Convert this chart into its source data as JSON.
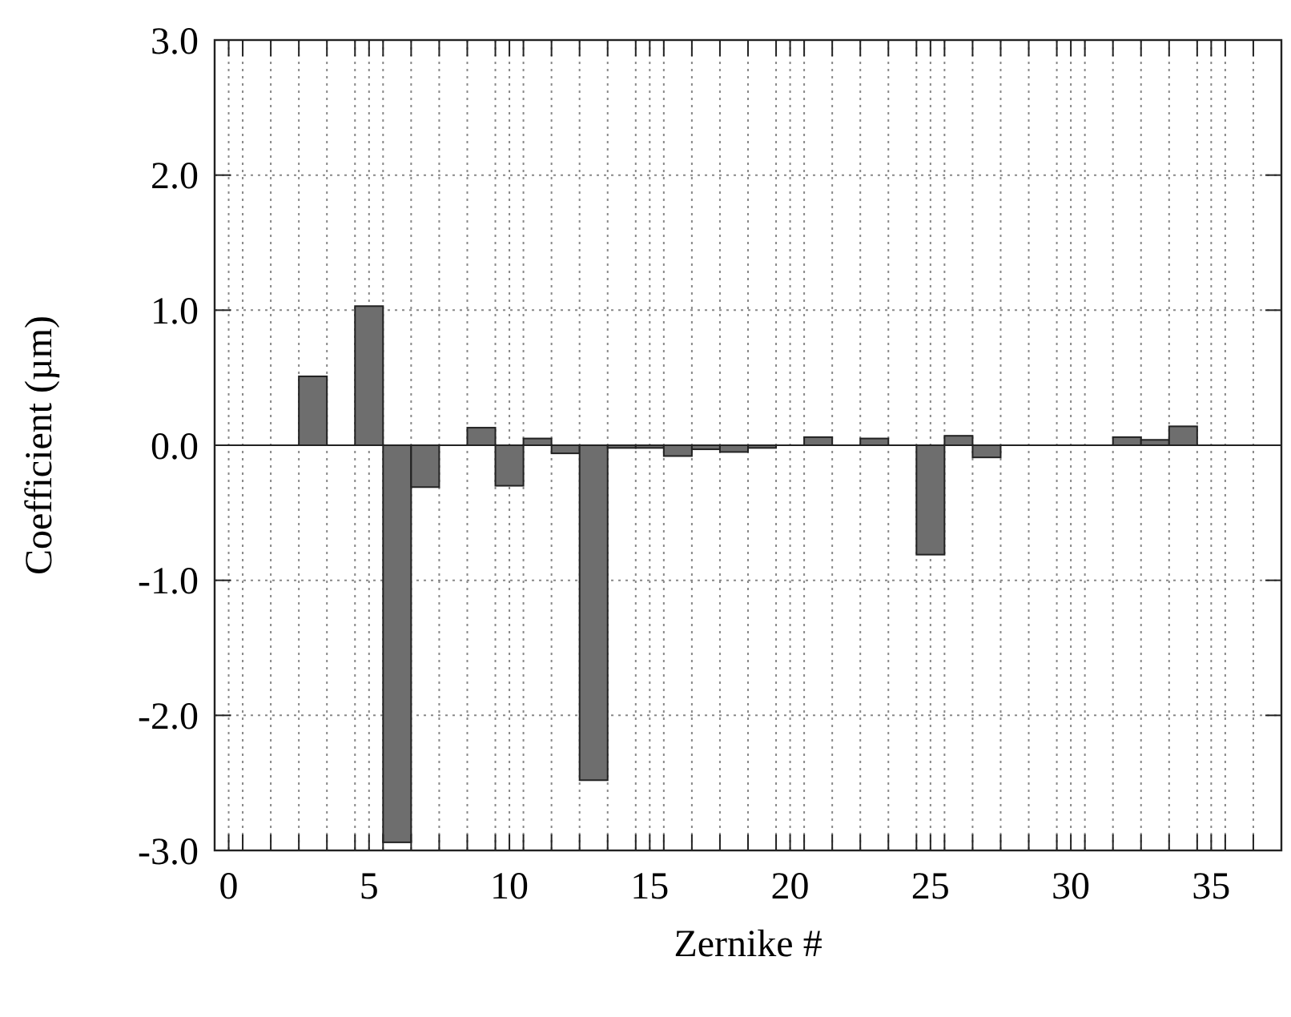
{
  "chart_data": {
    "type": "bar",
    "xlabel": "Zernike #",
    "ylabel": "Coefficient (µm)",
    "x": [
      3,
      5,
      6,
      7,
      9,
      10,
      11,
      12,
      13,
      14,
      15,
      16,
      17,
      18,
      19,
      21,
      23,
      25,
      26,
      27,
      32,
      33,
      34
    ],
    "values": [
      0.51,
      1.03,
      -2.94,
      -0.31,
      0.13,
      -0.3,
      0.05,
      -0.06,
      -2.48,
      -0.02,
      -0.02,
      -0.08,
      -0.03,
      -0.05,
      -0.02,
      0.06,
      0.05,
      -0.81,
      0.07,
      -0.09,
      0.06,
      0.04,
      0.14
    ],
    "color": "#6e6e6e",
    "xlim": [
      -0.5,
      37.5
    ],
    "xticks": [
      0,
      5,
      10,
      15,
      20,
      25,
      30,
      35,
      {
        "value": -0.5,
        "label": null
      },
      {
        "value": 0.5,
        "label": null
      },
      {
        "value": 1.5,
        "label": null
      },
      {
        "value": 2.5,
        "label": null
      },
      {
        "value": 3.5,
        "label": null
      },
      {
        "value": 4.5,
        "label": null
      },
      {
        "value": 5.5,
        "label": null
      },
      {
        "value": 6.5,
        "label": null
      },
      {
        "value": 7.5,
        "label": null
      },
      {
        "value": 8.5,
        "label": null
      },
      {
        "value": 9.5,
        "label": null
      },
      {
        "value": 10.5,
        "label": null
      },
      {
        "value": 11.5,
        "label": null
      },
      {
        "value": 12.5,
        "label": null
      },
      {
        "value": 13.5,
        "label": null
      },
      {
        "value": 14.5,
        "label": null
      },
      {
        "value": 15.5,
        "label": null
      },
      {
        "value": 16.5,
        "label": null
      },
      {
        "value": 17.5,
        "label": null
      },
      {
        "value": 18.5,
        "label": null
      },
      {
        "value": 19.5,
        "label": null
      },
      {
        "value": 20.5,
        "label": null
      },
      {
        "value": 21.5,
        "label": null
      },
      {
        "value": 22.5,
        "label": null
      },
      {
        "value": 23.5,
        "label": null
      },
      {
        "value": 24.5,
        "label": null
      },
      {
        "value": 25.5,
        "label": null
      },
      {
        "value": 26.5,
        "label": null
      },
      {
        "value": 27.5,
        "label": null
      },
      {
        "value": 28.5,
        "label": null
      },
      {
        "value": 29.5,
        "label": null
      },
      {
        "value": 30.5,
        "label": null
      },
      {
        "value": 31.5,
        "label": null
      },
      {
        "value": 32.5,
        "label": null
      },
      {
        "value": 33.5,
        "label": null
      },
      {
        "value": 34.5,
        "label": null
      },
      {
        "value": 35.5,
        "label": null
      },
      {
        "value": 36.5,
        "label": null
      },
      {
        "value": 37.5,
        "label": null
      }
    ],
    "ylim": [
      -3,
      3
    ],
    "yticks": [
      {
        "value": -3,
        "label": "-3.0"
      },
      {
        "value": -2,
        "label": "-2.0"
      },
      {
        "value": -1,
        "label": "-1.0"
      },
      {
        "value": 0,
        "label": "0.0"
      },
      {
        "value": 1,
        "label": "1.0"
      },
      {
        "value": 2,
        "label": "2.0"
      },
      {
        "value": 3,
        "label": "3.0"
      }
    ],
    "grid": true
  }
}
